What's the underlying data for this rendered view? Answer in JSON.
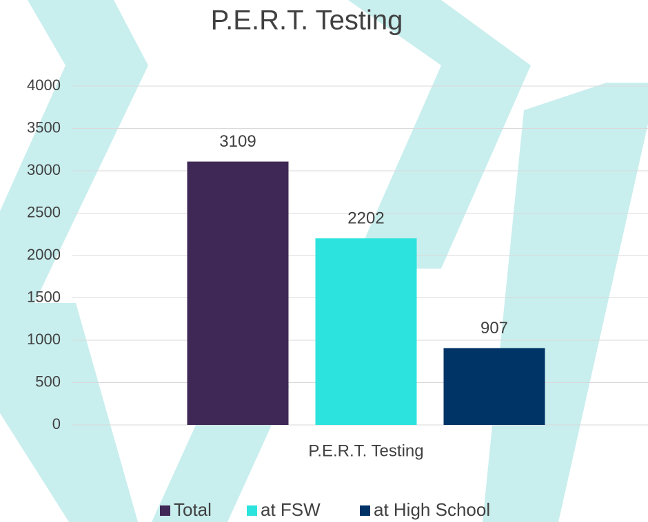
{
  "chart_data": {
    "type": "bar",
    "title": "P.E.R.T. Testing",
    "categories": [
      "P.E.R.T. Testing"
    ],
    "series": [
      {
        "name": "Total",
        "color": "#3f2856",
        "values": [
          3109
        ]
      },
      {
        "name": "at FSW",
        "color": "#2ce3dd",
        "values": [
          2202
        ]
      },
      {
        "name": "at High School",
        "color": "#003366",
        "values": [
          907
        ]
      }
    ],
    "ylim": [
      0,
      4000
    ],
    "yticks": [
      0,
      500,
      1000,
      1500,
      2000,
      2500,
      3000,
      3500,
      4000
    ],
    "grid": true,
    "legend": "bottom"
  }
}
